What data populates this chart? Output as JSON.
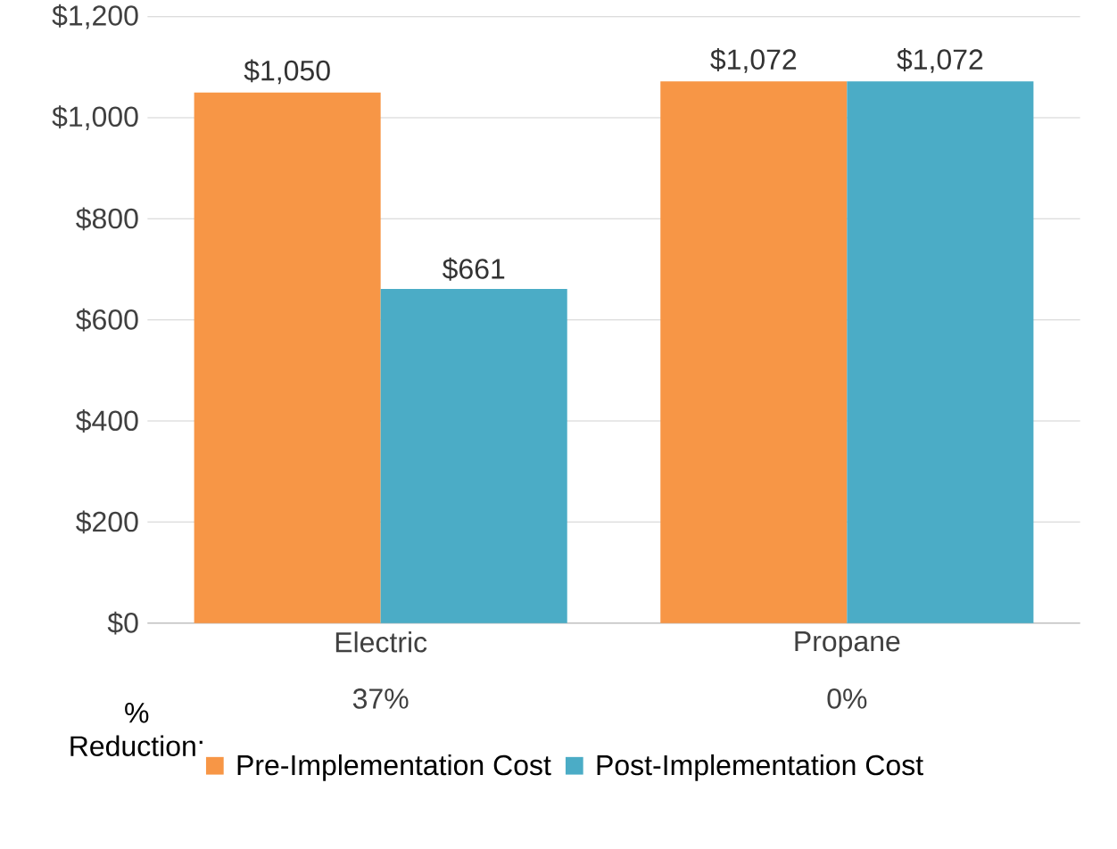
{
  "chart_data": {
    "type": "bar",
    "categories": [
      "Electric",
      "Propane"
    ],
    "series": [
      {
        "name": "Pre-Implementation Cost",
        "color": "#f79646",
        "values": [
          1050,
          1072
        ],
        "value_labels": [
          "$1,050",
          "$1,072"
        ]
      },
      {
        "name": "Post-Implementation Cost",
        "color": "#4bacc6",
        "values": [
          661,
          1072
        ],
        "value_labels": [
          "$661",
          "$1,072"
        ]
      }
    ],
    "ylim": [
      0,
      1200
    ],
    "yticks": [
      {
        "value": 0,
        "label": "$0"
      },
      {
        "value": 200,
        "label": "$200"
      },
      {
        "value": 400,
        "label": "$400"
      },
      {
        "value": 600,
        "label": "$600"
      },
      {
        "value": 800,
        "label": "$800"
      },
      {
        "value": 1000,
        "label": "$1,000"
      },
      {
        "value": 1200,
        "label": "$1,200"
      }
    ],
    "grid": "y",
    "legend": "bottom",
    "annotations": [
      "% Reduction:",
      "37%",
      "0%"
    ]
  }
}
